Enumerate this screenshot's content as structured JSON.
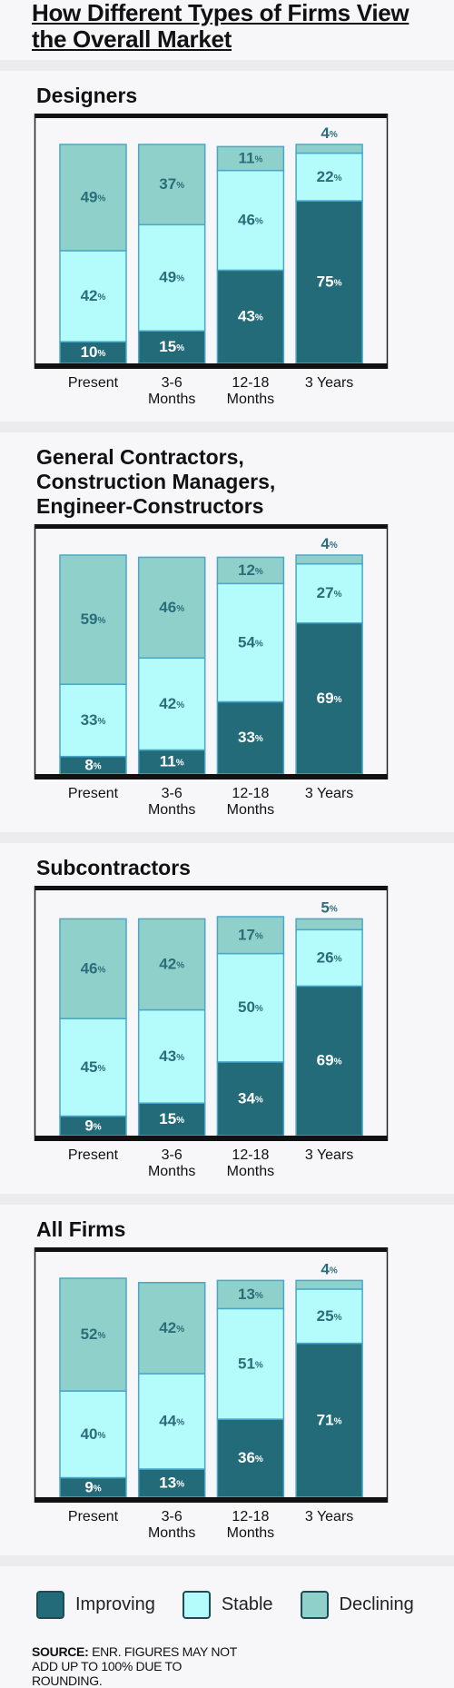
{
  "title": "How Different Types of Firms View the Overall Market",
  "chart_data": [
    {
      "type": "bar",
      "stacked": true,
      "title": "Designers",
      "categories": [
        "Present",
        "3-6 Months",
        "12-18 Months",
        "3 Years"
      ],
      "series": [
        {
          "values": [
            10,
            15,
            43,
            75
          ],
          "value_labels": [
            "10%",
            "15%",
            "43%",
            "75%"
          ]
        },
        {
          "values": [
            42,
            49,
            46,
            22
          ],
          "value_labels": [
            "42%",
            "49%",
            "46%",
            "22%"
          ]
        },
        {
          "values": [
            49,
            37,
            11,
            4
          ],
          "value_labels": [
            "49%",
            "37%",
            "11%",
            "4%"
          ]
        }
      ]
    },
    {
      "type": "bar",
      "stacked": true,
      "title": "General Contractors, Construction Managers, Engineer-Constructors",
      "categories": [
        "Present",
        "3-6 Months",
        "12-18 Months",
        "3 Years"
      ],
      "series": [
        {
          "values": [
            8,
            11,
            33,
            69
          ],
          "value_labels": [
            "8%",
            "11%",
            "33%",
            "69%"
          ]
        },
        {
          "values": [
            33,
            42,
            54,
            27
          ],
          "value_labels": [
            "33%",
            "42%",
            "54%",
            "27%"
          ]
        },
        {
          "values": [
            59,
            46,
            12,
            4
          ],
          "value_labels": [
            "59%",
            "46%",
            "12%",
            "4%"
          ]
        }
      ]
    },
    {
      "type": "bar",
      "stacked": true,
      "title": "Subcontractors",
      "categories": [
        "Present",
        "3-6 Months",
        "12-18 Months",
        "3 Years"
      ],
      "series": [
        {
          "values": [
            9,
            15,
            34,
            69
          ],
          "value_labels": [
            "9%",
            "15%",
            "34%",
            "69%"
          ]
        },
        {
          "values": [
            45,
            43,
            50,
            26
          ],
          "value_labels": [
            "45%",
            "43%",
            "50%",
            "26%"
          ]
        },
        {
          "values": [
            46,
            42,
            17,
            5
          ],
          "value_labels": [
            "46%",
            "42%",
            "17%",
            "5%"
          ]
        }
      ]
    },
    {
      "type": "bar",
      "stacked": true,
      "title": "All Firms",
      "categories": [
        "Present",
        "3-6 Months",
        "12-18 Months",
        "3 Years"
      ],
      "series": [
        {
          "values": [
            9,
            13,
            36,
            71
          ],
          "value_labels": [
            "9%",
            "13%",
            "36%",
            "71%"
          ]
        },
        {
          "values": [
            40,
            44,
            51,
            25
          ],
          "value_labels": [
            "40%",
            "44%",
            "51%",
            "25%"
          ]
        },
        {
          "values": [
            52,
            42,
            13,
            4
          ],
          "value_labels": [
            "52%",
            "42%",
            "13%",
            "4%"
          ]
        }
      ]
    }
  ],
  "legend": [
    {
      "name": "Improving",
      "color": "#236b78"
    },
    {
      "name": "Stable",
      "color": "#b4fbfb"
    },
    {
      "name": "Declining",
      "color": "#8fd1ca"
    }
  ],
  "source": {
    "label": "SOURCE:",
    "text": "ENR. FIGURES MAY NOT ADD UP TO 100% DUE TO ROUNDING."
  }
}
